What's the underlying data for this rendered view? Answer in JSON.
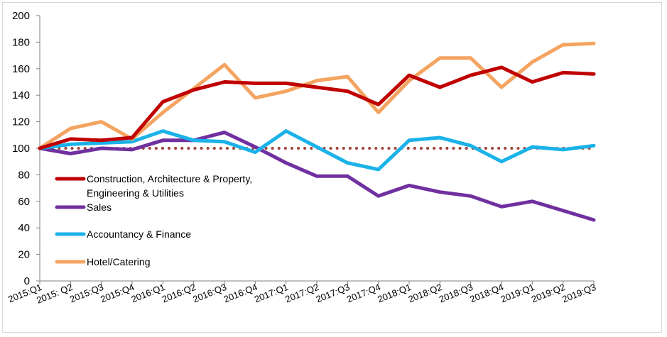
{
  "chart_data": {
    "type": "line",
    "title": "",
    "xlabel": "",
    "ylabel": "",
    "ylim": [
      0,
      200
    ],
    "yticks": [
      0,
      20,
      40,
      60,
      80,
      100,
      120,
      140,
      160,
      180,
      200
    ],
    "grid": false,
    "legend_position": "left",
    "categories": [
      "2015:Q1",
      "2015: Q2",
      "2015:Q3",
      "2015:Q4",
      "2016:Q1",
      "2016:Q2",
      "2016:Q3",
      "2016:Q4",
      "2017:Q1",
      "2017:Q2",
      "2017:Q3",
      "2017:Q4",
      "2018:Q1",
      "2018:Q2",
      "2018:Q3",
      "2018:Q4",
      "2019:Q1",
      "2019:Q2",
      "2019:Q3"
    ],
    "series": [
      {
        "name": "Construction, Architecture & Property, Engineering & Utilities",
        "color": "#c00000",
        "values": [
          100,
          107,
          106,
          108,
          135,
          144,
          150,
          149,
          149,
          146,
          143,
          133,
          155,
          146,
          155,
          161,
          150,
          157,
          156
        ]
      },
      {
        "name": "Sales",
        "color": "#7030a0",
        "values": [
          100,
          96,
          100,
          99,
          106,
          106,
          112,
          101,
          89,
          79,
          79,
          64,
          72,
          67,
          64,
          56,
          60,
          53,
          46
        ]
      },
      {
        "name": "Accountancy & Finance",
        "color": "#1ab2e8",
        "values": [
          100,
          103,
          104,
          105,
          113,
          106,
          105,
          97,
          113,
          101,
          89,
          84,
          106,
          108,
          102,
          90,
          101,
          99,
          102
        ]
      },
      {
        "name": "Hotel/Catering",
        "color": "#f4a460",
        "values": [
          100,
          115,
          120,
          107,
          127,
          145,
          163,
          138,
          143,
          151,
          154,
          127,
          151,
          168,
          168,
          146,
          165,
          178,
          179
        ]
      },
      {
        "name": "",
        "color": "#a0453a",
        "style": "dotted",
        "values": [
          100,
          100,
          100,
          100,
          100,
          100,
          100,
          100,
          100,
          100,
          100,
          100,
          100,
          100,
          100,
          100,
          100,
          100,
          100
        ]
      }
    ]
  }
}
